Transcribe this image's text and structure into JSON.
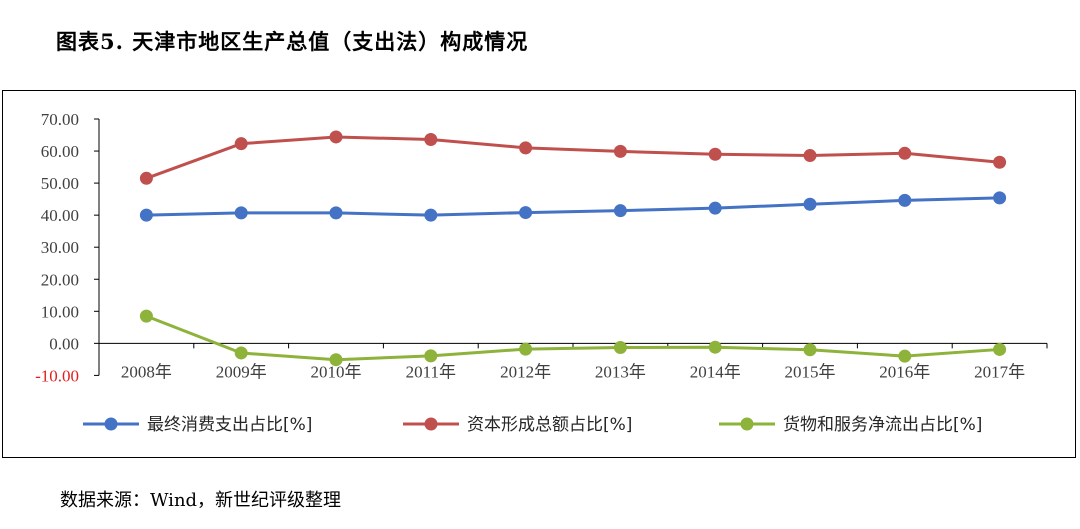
{
  "figure": {
    "title": "图表5. 天津市地区生产总值（支出法）构成情况",
    "source": "数据来源：Wind，新世纪评级整理"
  },
  "chart_data": {
    "type": "line",
    "categories": [
      "2008年",
      "2009年",
      "2010年",
      "2011年",
      "2012年",
      "2013年",
      "2014年",
      "2015年",
      "2016年",
      "2017年"
    ],
    "ylim": [
      -10,
      70
    ],
    "yticks": [
      70,
      60,
      50,
      40,
      30,
      20,
      10,
      0,
      -10
    ],
    "ytick_labels": [
      "70.00",
      "60.00",
      "50.00",
      "40.00",
      "30.00",
      "20.00",
      "10.00",
      "0.00",
      "-10.00"
    ],
    "negative_tick_color": "#E02020",
    "grid": false,
    "legend_position": "bottom",
    "series": [
      {
        "name": "最终消费支出占比[%]",
        "color": "#4472C4",
        "values": [
          40.0,
          40.7,
          40.7,
          40.0,
          40.8,
          41.4,
          42.2,
          43.4,
          44.6,
          45.4
        ]
      },
      {
        "name": "资本形成总额占比[%]",
        "color": "#C0504D",
        "values": [
          51.5,
          62.3,
          64.4,
          63.6,
          61.0,
          59.9,
          59.0,
          58.6,
          59.3,
          56.5
        ]
      },
      {
        "name": "货物和服务净流出占比[%]",
        "color": "#8DB33B",
        "values": [
          8.5,
          -3.0,
          -5.1,
          -3.9,
          -1.8,
          -1.3,
          -1.2,
          -2.0,
          -4.0,
          -1.9
        ]
      }
    ]
  }
}
